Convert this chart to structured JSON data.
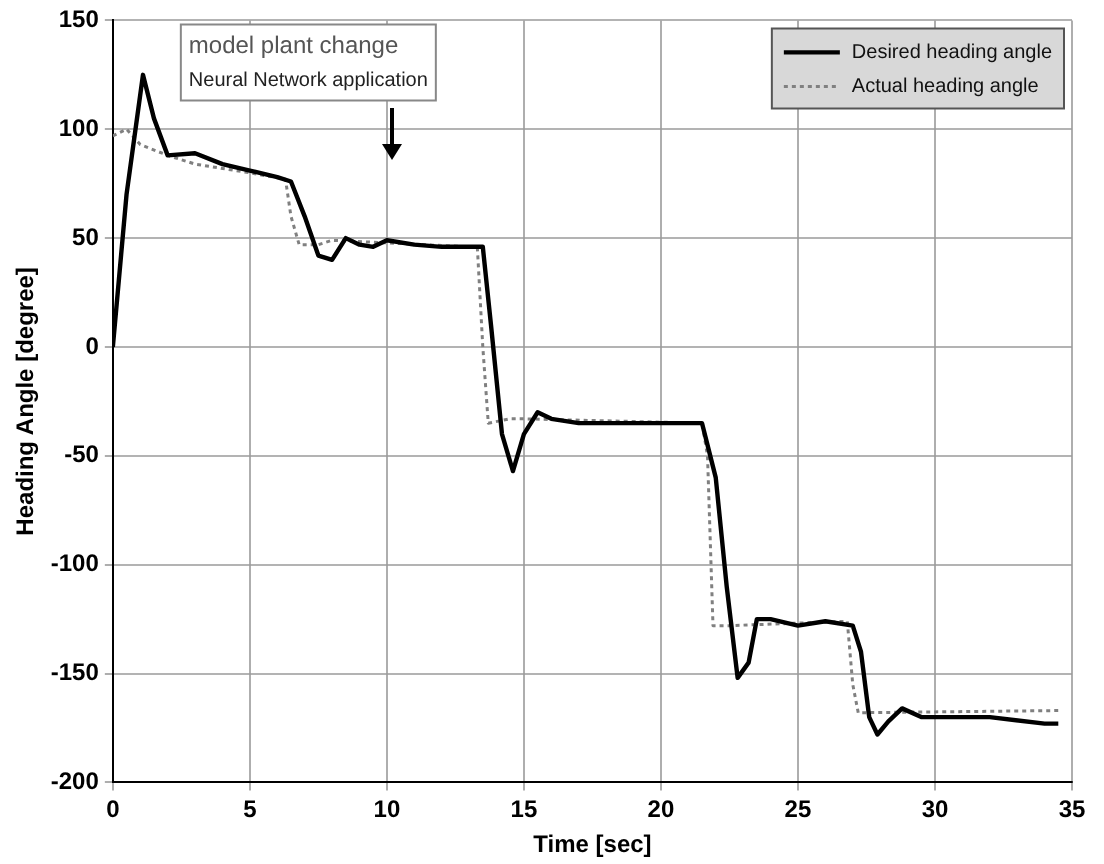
{
  "chart_data": {
    "type": "line",
    "xlabel": "Time [sec]",
    "ylabel": "Heading Angle [degree]",
    "xlim": [
      0,
      35
    ],
    "xticks": [
      0,
      5,
      10,
      15,
      20,
      25,
      30,
      35
    ],
    "ylim": [
      -200,
      150
    ],
    "yticks": [
      -200,
      -150,
      -100,
      -50,
      0,
      50,
      100,
      150
    ],
    "grid": true,
    "legend": "top right",
    "marker": "none",
    "annotations": [
      "model plant change",
      "Neural Network application"
    ],
    "series": [
      {
        "name": "Desired heading angle",
        "color": "#000000",
        "line_style": "solid",
        "x": [
          0,
          0.5,
          1.1,
          1.5,
          2,
          3,
          4,
          5,
          6,
          6.5,
          7,
          7.5,
          8,
          8.5,
          9,
          9.5,
          10,
          11,
          12,
          13,
          13.5,
          13.8,
          14.2,
          14.6,
          15,
          15.5,
          16,
          17,
          20,
          21.5,
          22,
          22.4,
          22.8,
          23.2,
          23.5,
          24,
          25,
          26,
          27,
          27.3,
          27.6,
          27.9,
          28.3,
          28.8,
          29.5,
          30,
          32,
          34,
          34.5
        ],
        "values": [
          0,
          70,
          125,
          105,
          88,
          89,
          84,
          81,
          78,
          76,
          60,
          42,
          40,
          50,
          47,
          46,
          49,
          47,
          46,
          46,
          46,
          10,
          -40,
          -57,
          -40,
          -30,
          -33,
          -35,
          -35,
          -35,
          -60,
          -110,
          -152,
          -145,
          -125,
          -125,
          -128,
          -126,
          -128,
          -140,
          -170,
          -178,
          -172,
          -166,
          -170,
          -170,
          -170,
          -173,
          -173
        ]
      },
      {
        "name": "Actual heading angle",
        "color": "#808080",
        "line_style": "dotted",
        "x": [
          0,
          0.5,
          1,
          2,
          3,
          5,
          6.3,
          6.5,
          6.8,
          7.5,
          8,
          13,
          13.3,
          13.5,
          13.7,
          14.5,
          15,
          21.5,
          21.7,
          21.9,
          22.5,
          26.8,
          27,
          27.2,
          34.5
        ],
        "values": [
          97,
          100,
          93,
          88,
          84,
          80,
          77,
          60,
          47,
          47,
          49,
          46,
          46,
          0,
          -35,
          -33,
          -33,
          -35,
          -50,
          -128,
          -128,
          -126,
          -155,
          -168,
          -167
        ]
      }
    ]
  }
}
